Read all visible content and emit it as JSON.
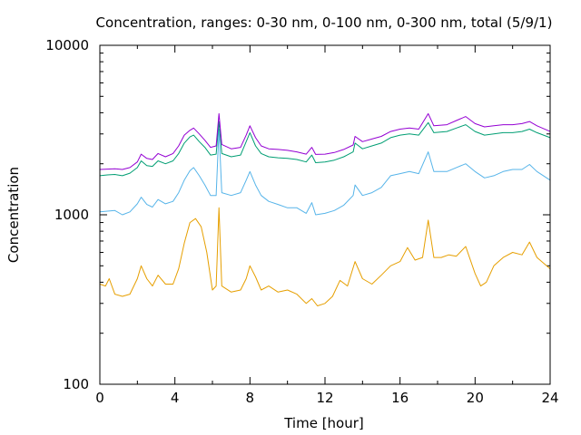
{
  "chart_data": {
    "type": "line",
    "title": "Concentration, ranges: 0-30 nm, 0-100 nm, 0-300 nm, total (5/9/1)",
    "xlabel": "Time [hour]",
    "ylabel": "Concentration",
    "xlim": [
      0,
      24
    ],
    "ylim": [
      100,
      10000
    ],
    "yscale": "log",
    "x_ticks": [
      "0",
      "4",
      "8",
      "12",
      "16",
      "20",
      "24"
    ],
    "x_tick_values": [
      0,
      4,
      8,
      12,
      16,
      20,
      24
    ],
    "y_ticks": [
      "100",
      "1000",
      "10000"
    ],
    "y_tick_values": [
      100,
      1000,
      10000
    ],
    "grid": false,
    "legend": "none",
    "series": [
      {
        "color": "#e69f00",
        "points": [
          [
            0,
            390
          ],
          [
            0.3,
            380
          ],
          [
            0.5,
            420
          ],
          [
            0.8,
            340
          ],
          [
            1.2,
            330
          ],
          [
            1.6,
            340
          ],
          [
            2.0,
            420
          ],
          [
            2.2,
            500
          ],
          [
            2.5,
            420
          ],
          [
            2.8,
            380
          ],
          [
            3.1,
            440
          ],
          [
            3.5,
            390
          ],
          [
            3.9,
            390
          ],
          [
            4.2,
            480
          ],
          [
            4.5,
            680
          ],
          [
            4.8,
            900
          ],
          [
            5.1,
            950
          ],
          [
            5.4,
            850
          ],
          [
            5.7,
            600
          ],
          [
            6.0,
            360
          ],
          [
            6.2,
            380
          ],
          [
            6.35,
            1100
          ],
          [
            6.5,
            380
          ],
          [
            7.0,
            350
          ],
          [
            7.5,
            360
          ],
          [
            7.8,
            420
          ],
          [
            8.0,
            500
          ],
          [
            8.3,
            430
          ],
          [
            8.6,
            360
          ],
          [
            9.0,
            380
          ],
          [
            9.5,
            350
          ],
          [
            10.0,
            360
          ],
          [
            10.5,
            340
          ],
          [
            11.0,
            300
          ],
          [
            11.3,
            320
          ],
          [
            11.6,
            290
          ],
          [
            12.0,
            300
          ],
          [
            12.4,
            330
          ],
          [
            12.8,
            410
          ],
          [
            13.2,
            380
          ],
          [
            13.6,
            530
          ],
          [
            14.0,
            420
          ],
          [
            14.5,
            390
          ],
          [
            15.0,
            440
          ],
          [
            15.5,
            500
          ],
          [
            16.0,
            530
          ],
          [
            16.4,
            640
          ],
          [
            16.8,
            540
          ],
          [
            17.2,
            560
          ],
          [
            17.5,
            930
          ],
          [
            17.8,
            560
          ],
          [
            18.2,
            560
          ],
          [
            18.6,
            580
          ],
          [
            19.0,
            570
          ],
          [
            19.5,
            650
          ],
          [
            20.0,
            450
          ],
          [
            20.3,
            380
          ],
          [
            20.6,
            400
          ],
          [
            21.0,
            500
          ],
          [
            21.5,
            560
          ],
          [
            22.0,
            600
          ],
          [
            22.5,
            580
          ],
          [
            22.9,
            690
          ],
          [
            23.3,
            560
          ],
          [
            24.0,
            480
          ]
        ]
      },
      {
        "color": "#56b4e9",
        "points": [
          [
            0,
            1040
          ],
          [
            0.4,
            1050
          ],
          [
            0.8,
            1060
          ],
          [
            1.2,
            1000
          ],
          [
            1.6,
            1040
          ],
          [
            2.0,
            1160
          ],
          [
            2.2,
            1270
          ],
          [
            2.5,
            1150
          ],
          [
            2.8,
            1110
          ],
          [
            3.1,
            1230
          ],
          [
            3.5,
            1160
          ],
          [
            3.9,
            1200
          ],
          [
            4.2,
            1350
          ],
          [
            4.5,
            1600
          ],
          [
            4.8,
            1820
          ],
          [
            5.0,
            1900
          ],
          [
            5.3,
            1700
          ],
          [
            5.6,
            1500
          ],
          [
            5.9,
            1300
          ],
          [
            6.2,
            1300
          ],
          [
            6.35,
            3200
          ],
          [
            6.5,
            1350
          ],
          [
            7.0,
            1300
          ],
          [
            7.5,
            1350
          ],
          [
            7.8,
            1600
          ],
          [
            8.0,
            1800
          ],
          [
            8.3,
            1500
          ],
          [
            8.6,
            1300
          ],
          [
            9.0,
            1200
          ],
          [
            9.5,
            1150
          ],
          [
            10.0,
            1100
          ],
          [
            10.5,
            1100
          ],
          [
            11.0,
            1020
          ],
          [
            11.3,
            1180
          ],
          [
            11.5,
            1000
          ],
          [
            12.0,
            1020
          ],
          [
            12.5,
            1060
          ],
          [
            13.0,
            1140
          ],
          [
            13.5,
            1300
          ],
          [
            13.6,
            1500
          ],
          [
            14.0,
            1300
          ],
          [
            14.5,
            1350
          ],
          [
            15.0,
            1450
          ],
          [
            15.5,
            1700
          ],
          [
            16.0,
            1750
          ],
          [
            16.5,
            1800
          ],
          [
            17.0,
            1750
          ],
          [
            17.5,
            2350
          ],
          [
            17.8,
            1800
          ],
          [
            18.5,
            1800
          ],
          [
            19.0,
            1900
          ],
          [
            19.5,
            2000
          ],
          [
            20.0,
            1800
          ],
          [
            20.5,
            1650
          ],
          [
            21.0,
            1700
          ],
          [
            21.5,
            1800
          ],
          [
            22.0,
            1850
          ],
          [
            22.5,
            1850
          ],
          [
            22.9,
            1980
          ],
          [
            23.3,
            1800
          ],
          [
            24.0,
            1600
          ]
        ]
      },
      {
        "color": "#009e73",
        "points": [
          [
            0,
            1700
          ],
          [
            0.4,
            1720
          ],
          [
            0.8,
            1730
          ],
          [
            1.2,
            1700
          ],
          [
            1.6,
            1760
          ],
          [
            2.0,
            1900
          ],
          [
            2.2,
            2080
          ],
          [
            2.5,
            1950
          ],
          [
            2.8,
            1930
          ],
          [
            3.1,
            2080
          ],
          [
            3.5,
            2000
          ],
          [
            3.9,
            2080
          ],
          [
            4.2,
            2300
          ],
          [
            4.5,
            2650
          ],
          [
            4.8,
            2880
          ],
          [
            5.0,
            2950
          ],
          [
            5.3,
            2700
          ],
          [
            5.6,
            2500
          ],
          [
            5.9,
            2250
          ],
          [
            6.2,
            2280
          ],
          [
            6.35,
            3550
          ],
          [
            6.5,
            2300
          ],
          [
            7.0,
            2200
          ],
          [
            7.5,
            2250
          ],
          [
            7.8,
            2700
          ],
          [
            8.0,
            3050
          ],
          [
            8.3,
            2550
          ],
          [
            8.6,
            2300
          ],
          [
            9.0,
            2200
          ],
          [
            9.5,
            2170
          ],
          [
            10.0,
            2150
          ],
          [
            10.5,
            2120
          ],
          [
            11.0,
            2050
          ],
          [
            11.3,
            2250
          ],
          [
            11.5,
            2030
          ],
          [
            12.0,
            2050
          ],
          [
            12.5,
            2100
          ],
          [
            13.0,
            2200
          ],
          [
            13.5,
            2350
          ],
          [
            13.6,
            2650
          ],
          [
            14.0,
            2450
          ],
          [
            14.5,
            2550
          ],
          [
            15.0,
            2650
          ],
          [
            15.5,
            2850
          ],
          [
            16.0,
            2950
          ],
          [
            16.5,
            3000
          ],
          [
            17.0,
            2950
          ],
          [
            17.5,
            3500
          ],
          [
            17.8,
            3050
          ],
          [
            18.5,
            3100
          ],
          [
            19.0,
            3250
          ],
          [
            19.5,
            3400
          ],
          [
            20.0,
            3100
          ],
          [
            20.5,
            2950
          ],
          [
            21.0,
            3000
          ],
          [
            21.5,
            3050
          ],
          [
            22.0,
            3050
          ],
          [
            22.5,
            3100
          ],
          [
            22.9,
            3200
          ],
          [
            23.3,
            3050
          ],
          [
            24.0,
            2850
          ]
        ]
      },
      {
        "color": "#9400d3",
        "points": [
          [
            0,
            1850
          ],
          [
            0.4,
            1860
          ],
          [
            0.8,
            1870
          ],
          [
            1.2,
            1850
          ],
          [
            1.6,
            1900
          ],
          [
            2.0,
            2050
          ],
          [
            2.2,
            2280
          ],
          [
            2.5,
            2150
          ],
          [
            2.8,
            2120
          ],
          [
            3.1,
            2300
          ],
          [
            3.5,
            2200
          ],
          [
            3.9,
            2300
          ],
          [
            4.2,
            2550
          ],
          [
            4.5,
            2950
          ],
          [
            4.8,
            3150
          ],
          [
            5.0,
            3250
          ],
          [
            5.3,
            3000
          ],
          [
            5.6,
            2750
          ],
          [
            5.9,
            2500
          ],
          [
            6.2,
            2550
          ],
          [
            6.35,
            3950
          ],
          [
            6.5,
            2600
          ],
          [
            7.0,
            2450
          ],
          [
            7.5,
            2500
          ],
          [
            7.8,
            2950
          ],
          [
            8.0,
            3350
          ],
          [
            8.3,
            2850
          ],
          [
            8.6,
            2550
          ],
          [
            9.0,
            2450
          ],
          [
            9.5,
            2430
          ],
          [
            10.0,
            2400
          ],
          [
            10.5,
            2350
          ],
          [
            11.0,
            2280
          ],
          [
            11.3,
            2500
          ],
          [
            11.5,
            2270
          ],
          [
            12.0,
            2280
          ],
          [
            12.5,
            2330
          ],
          [
            13.0,
            2430
          ],
          [
            13.5,
            2580
          ],
          [
            13.6,
            2900
          ],
          [
            14.0,
            2700
          ],
          [
            14.5,
            2800
          ],
          [
            15.0,
            2900
          ],
          [
            15.5,
            3100
          ],
          [
            16.0,
            3200
          ],
          [
            16.5,
            3250
          ],
          [
            17.0,
            3200
          ],
          [
            17.5,
            3950
          ],
          [
            17.8,
            3350
          ],
          [
            18.5,
            3400
          ],
          [
            19.0,
            3600
          ],
          [
            19.5,
            3800
          ],
          [
            20.0,
            3450
          ],
          [
            20.5,
            3300
          ],
          [
            21.0,
            3350
          ],
          [
            21.5,
            3400
          ],
          [
            22.0,
            3400
          ],
          [
            22.5,
            3450
          ],
          [
            22.9,
            3550
          ],
          [
            23.3,
            3350
          ],
          [
            24.0,
            3100
          ]
        ]
      }
    ]
  }
}
